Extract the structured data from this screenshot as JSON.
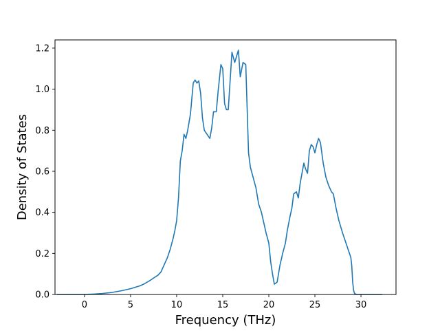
{
  "chart_data": {
    "type": "line",
    "title": "",
    "xlabel": "Frequency (THz)",
    "ylabel": "Density of States",
    "xlim": [
      -3.2,
      33.8
    ],
    "ylim": [
      0,
      1.24
    ],
    "grid": false,
    "legend": "none",
    "x_ticks": [
      0,
      5,
      10,
      15,
      20,
      25,
      30
    ],
    "x_tick_labels": [
      "0",
      "5",
      "10",
      "15",
      "20",
      "25",
      "30"
    ],
    "y_ticks": [
      0.0,
      0.2,
      0.4,
      0.6,
      0.8,
      1.0,
      1.2
    ],
    "y_tick_labels": [
      "0.0",
      "0.2",
      "0.4",
      "0.6",
      "0.8",
      "1.0",
      "1.2"
    ],
    "colors": {
      "line": "#1f77b4",
      "axes": "#000000",
      "background": "#ffffff"
    },
    "series": [
      {
        "x": [
          -3.0,
          -1.0,
          0.0,
          1.0,
          2.0,
          3.0,
          4.0,
          5.0,
          6.0,
          6.5,
          7.0,
          7.5,
          8.0,
          8.3,
          8.6,
          9.0,
          9.3,
          9.6,
          9.8,
          10.0,
          10.2,
          10.4,
          10.6,
          10.8,
          11.0,
          11.2,
          11.5,
          11.8,
          12.0,
          12.2,
          12.4,
          12.6,
          12.8,
          13.0,
          13.3,
          13.6,
          13.8,
          14.0,
          14.3,
          14.5,
          14.8,
          15.0,
          15.2,
          15.4,
          15.6,
          16.0,
          16.3,
          16.5,
          16.7,
          16.9,
          17.2,
          17.5,
          17.8,
          18.0,
          18.3,
          18.6,
          18.9,
          19.2,
          19.5,
          19.7,
          20.0,
          20.2,
          20.4,
          20.6,
          20.9,
          21.2,
          21.5,
          21.8,
          22.0,
          22.3,
          22.5,
          22.7,
          23.0,
          23.2,
          23.4,
          23.6,
          23.8,
          24.0,
          24.2,
          24.4,
          24.6,
          24.8,
          25.0,
          25.2,
          25.4,
          25.6,
          25.9,
          26.2,
          26.5,
          26.8,
          27.0,
          27.3,
          27.6,
          28.0,
          28.3,
          28.6,
          28.9,
          29.0,
          29.1,
          29.2,
          29.3,
          29.5,
          30.0,
          31.0,
          32.3
        ],
        "y": [
          0.0,
          0.0,
          0.0,
          0.002,
          0.005,
          0.01,
          0.018,
          0.028,
          0.042,
          0.052,
          0.065,
          0.08,
          0.095,
          0.11,
          0.14,
          0.18,
          0.22,
          0.27,
          0.31,
          0.36,
          0.47,
          0.65,
          0.7,
          0.78,
          0.76,
          0.8,
          0.88,
          1.03,
          1.045,
          1.03,
          1.04,
          0.98,
          0.86,
          0.8,
          0.78,
          0.76,
          0.81,
          0.89,
          0.89,
          0.99,
          1.12,
          1.1,
          0.93,
          0.9,
          0.9,
          1.18,
          1.13,
          1.16,
          1.19,
          1.06,
          1.13,
          1.12,
          0.69,
          0.62,
          0.57,
          0.52,
          0.44,
          0.4,
          0.34,
          0.3,
          0.25,
          0.16,
          0.1,
          0.05,
          0.06,
          0.14,
          0.2,
          0.25,
          0.31,
          0.38,
          0.42,
          0.49,
          0.5,
          0.47,
          0.54,
          0.59,
          0.64,
          0.61,
          0.59,
          0.7,
          0.73,
          0.72,
          0.69,
          0.73,
          0.76,
          0.74,
          0.64,
          0.57,
          0.53,
          0.5,
          0.49,
          0.42,
          0.36,
          0.3,
          0.26,
          0.22,
          0.18,
          0.14,
          0.06,
          0.02,
          0.005,
          0.0,
          0.0,
          0.0,
          0.0
        ]
      }
    ]
  }
}
